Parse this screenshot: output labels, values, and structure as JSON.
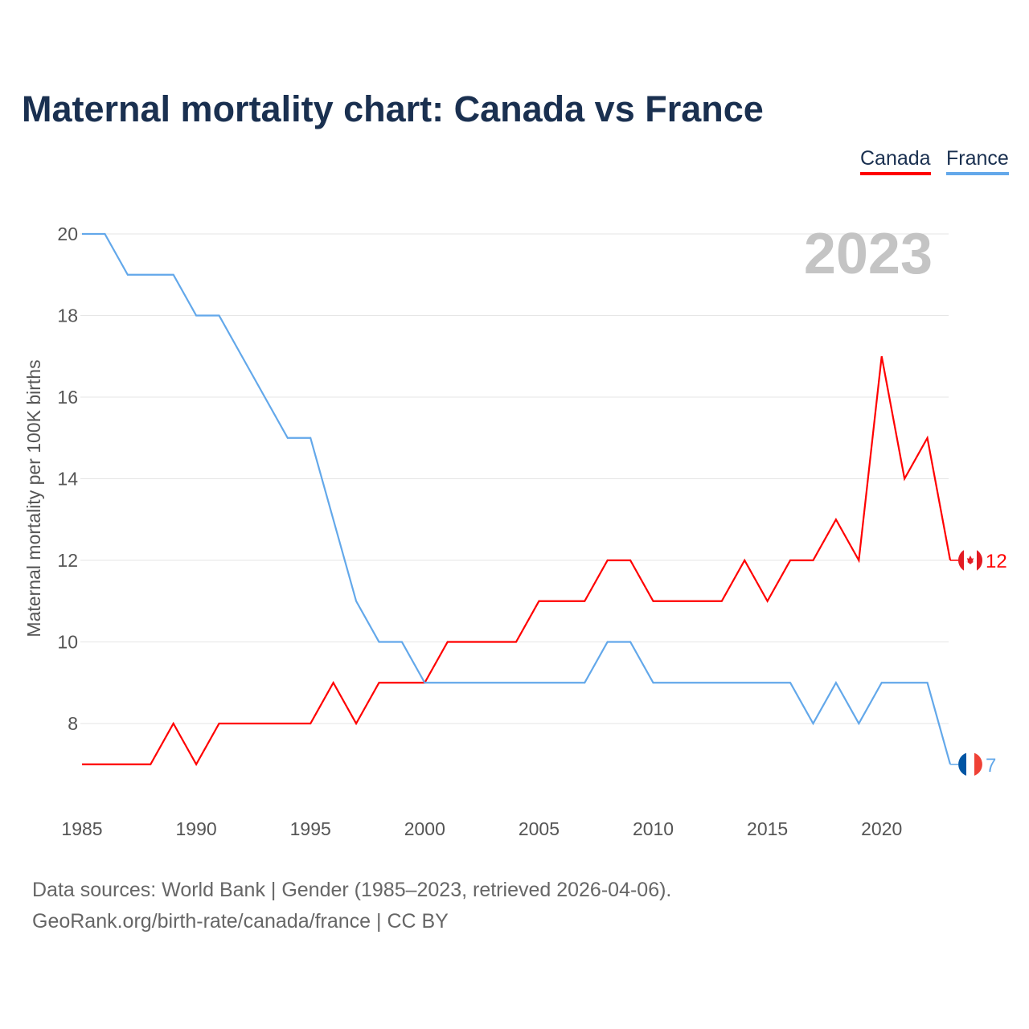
{
  "chart_data": {
    "type": "line",
    "title": "Maternal mortality chart: Canada vs France",
    "xlabel": "",
    "ylabel": "Maternal mortality per 100K births",
    "x": [
      1985,
      1986,
      1987,
      1988,
      1989,
      1990,
      1991,
      1992,
      1993,
      1994,
      1995,
      1996,
      1997,
      1998,
      1999,
      2000,
      2001,
      2002,
      2003,
      2004,
      2005,
      2006,
      2007,
      2008,
      2009,
      2010,
      2011,
      2012,
      2013,
      2014,
      2015,
      2016,
      2017,
      2018,
      2019,
      2020,
      2021,
      2022,
      2023
    ],
    "xlim": [
      1985,
      2023
    ],
    "ylim": [
      6,
      20
    ],
    "xticks": [
      1985,
      1990,
      1995,
      2000,
      2005,
      2010,
      2015,
      2020
    ],
    "yticks": [
      8,
      10,
      12,
      14,
      16,
      18,
      20
    ],
    "grid": true,
    "legend_position": "top-right",
    "year_label": "2023",
    "series": [
      {
        "name": "Canada",
        "color": "#ff0000",
        "end_label": "12",
        "values": [
          7,
          7,
          7,
          7,
          8,
          7,
          8,
          8,
          8,
          8,
          8,
          9,
          8,
          9,
          9,
          9,
          10,
          10,
          10,
          10,
          11,
          11,
          11,
          12,
          12,
          11,
          11,
          11,
          11,
          12,
          11,
          12,
          12,
          13,
          12,
          17,
          14,
          15,
          12
        ]
      },
      {
        "name": "France",
        "color": "#63a8ea",
        "end_label": "7",
        "values": [
          20,
          20,
          19,
          19,
          19,
          18,
          18,
          17,
          16,
          15,
          15,
          13,
          11,
          10,
          10,
          9,
          9,
          9,
          9,
          9,
          9,
          9,
          9,
          10,
          10,
          9,
          9,
          9,
          9,
          9,
          9,
          9,
          8,
          9,
          8,
          9,
          9,
          9,
          7
        ]
      }
    ]
  },
  "source": {
    "line1": "Data sources: World Bank | Gender (1985–2023, retrieved 2026-04-06).",
    "line2": "GeoRank.org/birth-rate/canada/france | CC BY"
  }
}
